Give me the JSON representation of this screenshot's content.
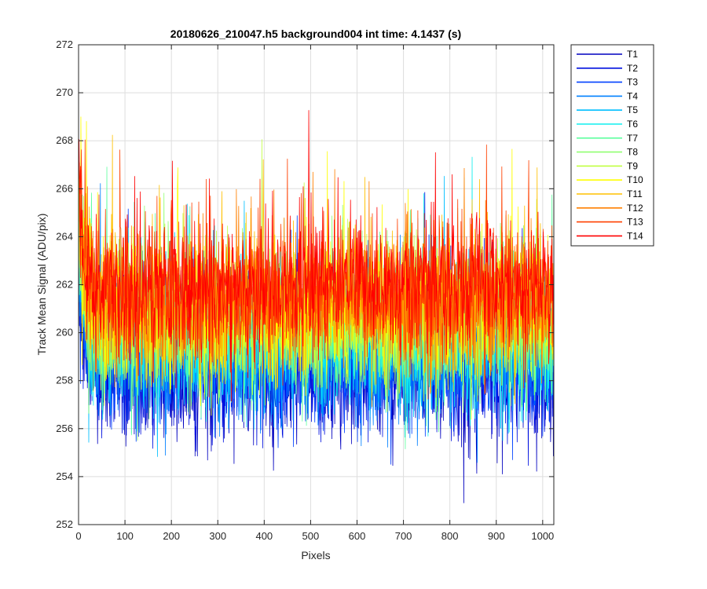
{
  "chart_data": {
    "type": "line",
    "title": "20180626_210047.h5  background004   int time: 4.1437 (s)",
    "xlabel": "Pixels",
    "ylabel": "Track Mean Signal (ADU/pix)",
    "xlim": [
      0,
      1024
    ],
    "ylim": [
      252,
      272
    ],
    "x_ticks": [
      0,
      100,
      200,
      300,
      400,
      500,
      600,
      700,
      800,
      900,
      1000
    ],
    "y_ticks": [
      252,
      254,
      256,
      258,
      260,
      262,
      264,
      266,
      268,
      270,
      272
    ],
    "grid": true,
    "legend_location": "outside-right-top",
    "x_points": 1024,
    "series": [
      {
        "name": "T1",
        "color": "#0000bf",
        "mean": 258.3,
        "noise_sd": 1.4
      },
      {
        "name": "T2",
        "color": "#0010df",
        "mean": 258.6,
        "noise_sd": 1.4
      },
      {
        "name": "T3",
        "color": "#0040ff",
        "mean": 258.9,
        "noise_sd": 1.4
      },
      {
        "name": "T4",
        "color": "#0080ff",
        "mean": 259.2,
        "noise_sd": 1.4
      },
      {
        "name": "T5",
        "color": "#00bfff",
        "mean": 259.5,
        "noise_sd": 1.4
      },
      {
        "name": "T6",
        "color": "#10efef",
        "mean": 259.8,
        "noise_sd": 1.4
      },
      {
        "name": "T7",
        "color": "#60ffa0",
        "mean": 260.1,
        "noise_sd": 1.4
      },
      {
        "name": "T8",
        "color": "#90ff70",
        "mean": 260.3,
        "noise_sd": 1.4
      },
      {
        "name": "T9",
        "color": "#c0ff40",
        "mean": 260.6,
        "noise_sd": 1.4
      },
      {
        "name": "T10",
        "color": "#ffff00",
        "mean": 260.9,
        "noise_sd": 1.4
      },
      {
        "name": "T11",
        "color": "#ffc000",
        "mean": 261.1,
        "noise_sd": 1.4
      },
      {
        "name": "T12",
        "color": "#ff8000",
        "mean": 261.4,
        "noise_sd": 1.4
      },
      {
        "name": "T13",
        "color": "#ff4000",
        "mean": 261.6,
        "noise_sd": 1.4
      },
      {
        "name": "T14",
        "color": "#ff0000",
        "mean": 261.9,
        "noise_sd": 1.4
      }
    ]
  }
}
